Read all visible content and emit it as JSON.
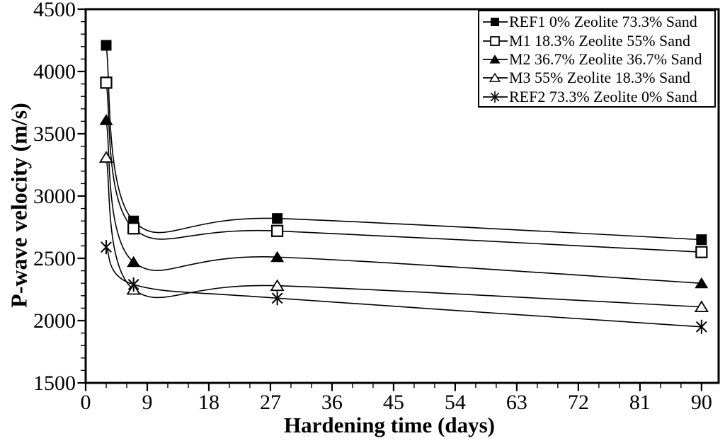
{
  "chart_data": {
    "type": "line",
    "title": "",
    "xlabel": "Hardening time (days)",
    "ylabel": "P-wave velocity (m/s)",
    "x": [
      3,
      7,
      28,
      90
    ],
    "xlim": [
      0,
      92.5
    ],
    "ylim": [
      1500,
      4500
    ],
    "x_major_ticks": [
      0,
      9,
      18,
      27,
      36,
      45,
      54,
      63,
      72,
      81,
      90
    ],
    "x_minor_step": 3,
    "y_major_ticks": [
      1500,
      2000,
      2500,
      3000,
      3500,
      4000,
      4500
    ],
    "y_minor_step": 100,
    "grid": false,
    "smooth": true,
    "legend_position": "top-right-inside",
    "line_color": "#000000",
    "background_color": "#ffffff",
    "series": [
      {
        "name": "REF1 0% Zeolite 73.3% Sand",
        "marker": "filled-square",
        "values": [
          4210,
          2800,
          2820,
          2650
        ]
      },
      {
        "name": "M1 18.3% Zeolite 55% Sand",
        "marker": "open-square",
        "values": [
          3910,
          2740,
          2720,
          2550
        ]
      },
      {
        "name": "M2 36.7% Zeolite 36.7% Sand",
        "marker": "filled-triangle",
        "values": [
          3610,
          2470,
          2510,
          2300
        ]
      },
      {
        "name": "M3 55% Zeolite 18.3% Sand",
        "marker": "open-triangle",
        "values": [
          3310,
          2250,
          2280,
          2110
        ]
      },
      {
        "name": "REF2 73.3% Zeolite 0% Sand",
        "marker": "asterisk",
        "values": [
          2590,
          2290,
          2180,
          1950
        ]
      }
    ]
  }
}
